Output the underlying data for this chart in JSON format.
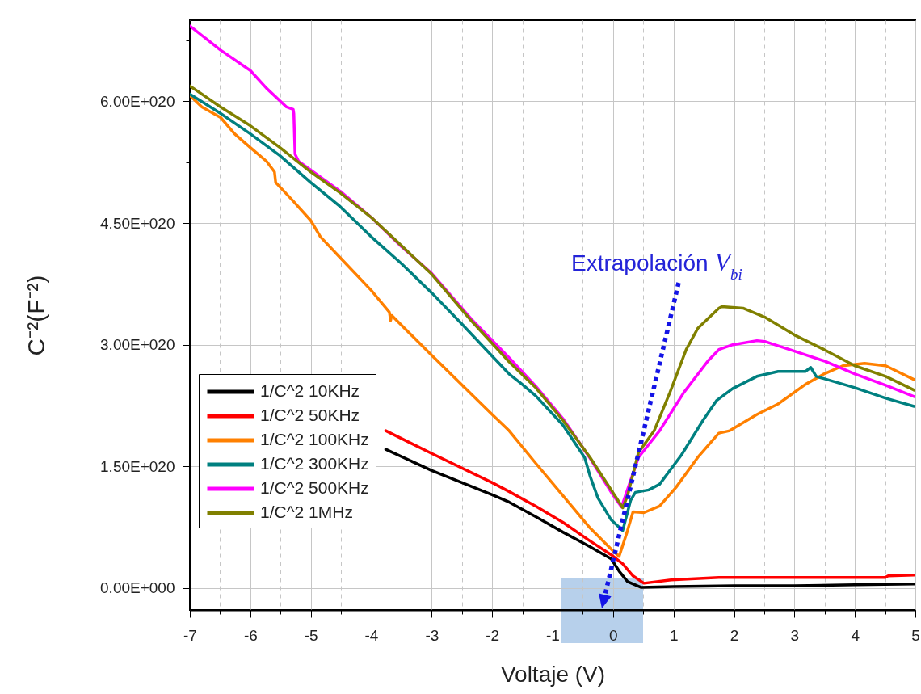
{
  "chart_data": {
    "type": "line",
    "xlabel": "Voltaje (V)",
    "ylabel": "C⁻²(F⁻²)",
    "xlim": [
      -7,
      5
    ],
    "ylim": [
      -2.7e+19,
      7e+20
    ],
    "xticks": [
      -7,
      {
        "value": -6.5,
        "label": null
      },
      -6,
      {
        "value": -5.5,
        "label": null
      },
      -5,
      {
        "value": -4.5,
        "label": null
      },
      -4,
      {
        "value": -3.5,
        "label": null
      },
      -3,
      {
        "value": -2.5,
        "label": null
      },
      -2,
      {
        "value": -1.5,
        "label": null
      },
      -1,
      {
        "value": -0.5,
        "label": null
      },
      0,
      {
        "value": 0.5,
        "label": null
      },
      1,
      {
        "value": 1.5,
        "label": null
      },
      2,
      {
        "value": 2.5,
        "label": null
      },
      3,
      {
        "value": 3.5,
        "label": null
      },
      4,
      {
        "value": 4.5,
        "label": null
      },
      5
    ],
    "yticks": [
      {
        "value": 0,
        "label": "0.00E+000"
      },
      {
        "value": 7.5e+19,
        "label": null
      },
      {
        "value": 1.5e+20,
        "label": "1.50E+020"
      },
      {
        "value": 2.25e+20,
        "label": null
      },
      {
        "value": 3e+20,
        "label": "3.00E+020"
      },
      {
        "value": 3.75e+20,
        "label": null
      },
      {
        "value": 4.5e+20,
        "label": "4.50E+020"
      },
      {
        "value": 5.25e+20,
        "label": null
      },
      {
        "value": 6e+20,
        "label": "6.00E+020"
      },
      {
        "value": 6.75e+20,
        "label": null
      }
    ],
    "grid": true,
    "legend": "left",
    "annotations": [
      "Extrapolación V$_{bi}$"
    ],
    "series": [
      {
        "name": "1/C^2 10KHz",
        "color": "#000000",
        "x": [
          -3.76,
          -3.0,
          -2.0,
          -1.72,
          -1.28,
          -0.83,
          -0.38,
          -0.03,
          0.1,
          0.24,
          0.46,
          1.0,
          2.0,
          3.0,
          4.0,
          4.98
        ],
        "values": [
          1.71e+20,
          1.45e+20,
          1.15e+20,
          1.06e+20,
          8.8e+19,
          6.9e+19,
          5.1e+19,
          3.6e+19,
          2.1e+19,
          8e+18,
          1e+18,
          2e+18,
          3e+18,
          3e+18,
          4e+18,
          5e+18
        ]
      },
      {
        "name": "1/C^2 50KHz",
        "color": "#ff0000",
        "x": [
          -3.76,
          -3.0,
          -2.0,
          -1.72,
          -1.28,
          -0.83,
          -0.38,
          -0.03,
          0.16,
          0.33,
          0.51,
          0.96,
          1.75,
          4.5,
          4.55,
          4.98
        ],
        "values": [
          1.94e+20,
          1.66e+20,
          1.3e+20,
          1.19e+20,
          1.01e+20,
          8.1e+19,
          5.8e+19,
          4.1e+19,
          3e+19,
          1.5e+19,
          6e+18,
          1e+19,
          1.3e+19,
          1.3e+19,
          1.5e+19,
          1.6e+19
        ]
      },
      {
        "name": "1/C^2 100KHz",
        "color": "#ff8000",
        "x": [
          -6.98,
          -6.8,
          -6.49,
          -6.26,
          -6.0,
          -5.73,
          -5.6,
          -5.58,
          -5.29,
          -5.0,
          -4.84,
          -4.51,
          -4.0,
          -3.7,
          -3.68,
          -3.66,
          -3.0,
          -2.0,
          -1.72,
          -1.28,
          -0.83,
          -0.38,
          -0.03,
          0.1,
          0.24,
          0.33,
          0.51,
          0.77,
          1.04,
          1.4,
          1.75,
          1.93,
          2.38,
          2.73,
          3.18,
          3.49,
          3.8,
          4.16,
          4.51,
          4.98
        ],
        "values": [
          6.06e+20,
          5.93e+20,
          5.8e+20,
          5.6e+20,
          5.43e+20,
          5.26e+20,
          5.13e+20,
          5e+20,
          4.77e+20,
          4.53e+20,
          4.33e+20,
          4.07e+20,
          3.67e+20,
          3.4e+20,
          3.3e+20,
          3.36e+20,
          2.87e+20,
          2.14e+20,
          1.94e+20,
          1.54e+20,
          1.14e+20,
          7.4e+19,
          4.8e+19,
          3.9e+19,
          7.1e+19,
          9.4e+19,
          9.3e+19,
          1.01e+20,
          1.24e+20,
          1.61e+20,
          1.91e+20,
          1.94e+20,
          2.14e+20,
          2.27e+20,
          2.51e+20,
          2.64e+20,
          2.74e+20,
          2.77e+20,
          2.74e+20,
          2.57e+20
        ]
      },
      {
        "name": "1/C^2 300KHz",
        "color": "#008080",
        "x": [
          -7,
          -6.49,
          -6.0,
          -5.51,
          -5.0,
          -4.51,
          -4.0,
          -3.5,
          -3.0,
          -2.52,
          -2.0,
          -1.72,
          -1.5,
          -1.28,
          -0.83,
          -0.47,
          -0.38,
          -0.25,
          -0.03,
          0.16,
          0.29,
          0.37,
          0.59,
          0.77,
          1.13,
          1.49,
          1.71,
          1.98,
          2.38,
          2.73,
          3.18,
          3.27,
          3.36,
          4.0,
          4.51,
          4.98
        ],
        "values": [
          6.09e+20,
          5.85e+20,
          5.6e+20,
          5.33e+20,
          5e+20,
          4.7e+20,
          4.33e+20,
          4e+20,
          3.64e+20,
          3.27e+20,
          2.86e+20,
          2.64e+20,
          2.51e+20,
          2.37e+20,
          2.01e+20,
          1.61e+20,
          1.38e+20,
          1.11e+20,
          8.4e+19,
          7.1e+19,
          1.08e+20,
          1.18e+20,
          1.21e+20,
          1.28e+20,
          1.64e+20,
          2.07e+20,
          2.31e+20,
          2.46e+20,
          2.61e+20,
          2.67e+20,
          2.67e+20,
          2.72e+20,
          2.61e+20,
          2.47e+20,
          2.34e+20,
          2.24e+20
        ]
      },
      {
        "name": "1/C^2 500KHz",
        "color": "#ff00ff",
        "x": [
          -7,
          -6.49,
          -6.0,
          -5.73,
          -5.4,
          -5.29,
          -5.28,
          -5.26,
          -5.2,
          -4.51,
          -4.0,
          -3.5,
          -3.0,
          -2.35,
          -1.72,
          -1.28,
          -0.83,
          -0.38,
          -0.03,
          0.14,
          0.42,
          0.77,
          1.17,
          1.57,
          1.75,
          1.98,
          2.38,
          2.51,
          3.0,
          3.49,
          4.0,
          4.51,
          4.98
        ],
        "values": [
          6.93e+20,
          6.63e+20,
          6.38e+20,
          6.16e+20,
          5.93e+20,
          5.9e+20,
          5.85e+20,
          5.35e+20,
          5.26e+20,
          4.89e+20,
          4.57e+20,
          4.21e+20,
          3.88e+20,
          3.32e+20,
          2.84e+20,
          2.49e+20,
          2.09e+20,
          1.6e+20,
          1.18e+20,
          1e+20,
          1.61e+20,
          1.94e+20,
          2.41e+20,
          2.8e+20,
          2.94e+20,
          3e+20,
          3.05e+20,
          3.04e+20,
          2.92e+20,
          2.8e+20,
          2.64e+20,
          2.5e+20,
          2.36e+20
        ]
      },
      {
        "name": "1/C^2 1MHz",
        "color": "#808000",
        "x": [
          -7,
          -6.49,
          -6.0,
          -5.51,
          -5.0,
          -4.51,
          -4.0,
          -3.5,
          -3.0,
          -2.35,
          -1.72,
          -1.28,
          -0.83,
          -0.38,
          -0.03,
          0.16,
          0.24,
          0.42,
          0.68,
          0.94,
          1.21,
          1.4,
          1.75,
          1.8,
          2.15,
          2.51,
          3.0,
          3.49,
          4.0,
          4.51,
          4.98
        ],
        "values": [
          6.19e+20,
          5.93e+20,
          5.7e+20,
          5.43e+20,
          5.13e+20,
          4.87e+20,
          4.57e+20,
          4.22e+20,
          3.87e+20,
          3.3e+20,
          2.79e+20,
          2.47e+20,
          2.07e+20,
          1.61e+20,
          1.21e+20,
          9.9e+19,
          1.14e+20,
          1.67e+20,
          1.94e+20,
          2.41e+20,
          2.94e+20,
          3.2e+20,
          3.45e+20,
          3.47e+20,
          3.45e+20,
          3.34e+20,
          3.12e+20,
          2.94e+20,
          2.74e+20,
          2.61e+20,
          2.44e+20
        ]
      }
    ]
  }
}
